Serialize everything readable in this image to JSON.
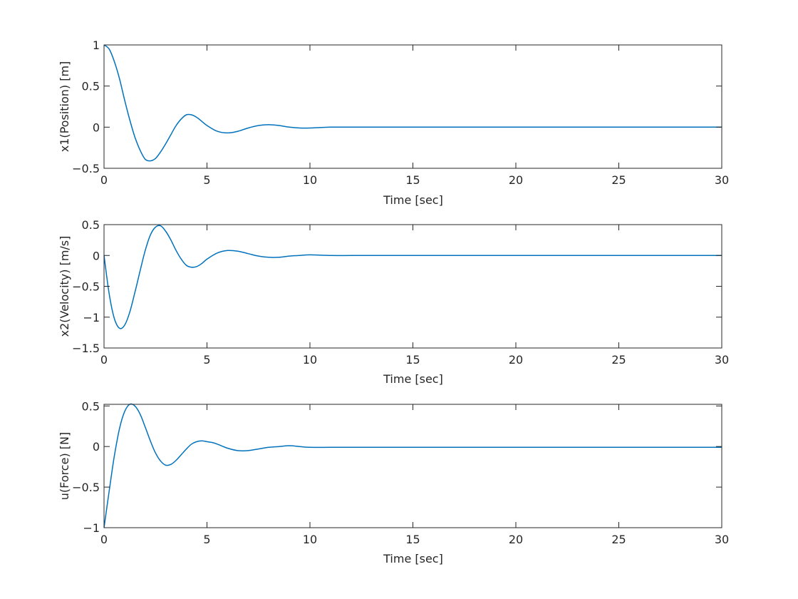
{
  "figure": {
    "background": "#ffffff",
    "line_color": "#0072BD",
    "axes_color": "#262626"
  },
  "chart_data": [
    {
      "type": "line",
      "title": "",
      "xlabel": "Time [sec]",
      "ylabel": "x1(Position) [m]",
      "xlim": [
        0,
        30
      ],
      "ylim": [
        -0.5,
        1
      ],
      "xticks": [
        0,
        5,
        10,
        15,
        20,
        25,
        30
      ],
      "yticks": [
        -0.5,
        0,
        0.5,
        1
      ],
      "ytick_labels": [
        "−0.5",
        "0",
        "0.5",
        "1"
      ],
      "grid": false,
      "series": [
        {
          "name": "x1",
          "x": [
            0,
            0.25,
            0.5,
            0.75,
            1,
            1.25,
            1.5,
            1.75,
            2,
            2.25,
            2.5,
            2.75,
            3,
            3.25,
            3.5,
            3.75,
            4,
            4.25,
            4.5,
            4.75,
            5,
            5.5,
            6,
            6.5,
            7,
            7.5,
            8,
            8.5,
            9,
            9.5,
            10,
            11,
            12,
            13,
            14,
            15,
            20,
            25,
            30
          ],
          "values": [
            1,
            0.95,
            0.8,
            0.59,
            0.33,
            0.09,
            -0.12,
            -0.28,
            -0.39,
            -0.41,
            -0.38,
            -0.3,
            -0.2,
            -0.09,
            0.02,
            0.1,
            0.15,
            0.15,
            0.12,
            0.07,
            0.02,
            -0.05,
            -0.07,
            -0.05,
            -0.01,
            0.02,
            0.03,
            0.02,
            0.0,
            -0.01,
            -0.01,
            0.0,
            0.0,
            0.0,
            0.0,
            0.0,
            0.0,
            0.0,
            0.0
          ]
        }
      ]
    },
    {
      "type": "line",
      "title": "",
      "xlabel": "Time [sec]",
      "ylabel": "x2(Velocity) [m/s]",
      "xlim": [
        0,
        30
      ],
      "ylim": [
        -1.5,
        0.5
      ],
      "xticks": [
        0,
        5,
        10,
        15,
        20,
        25,
        30
      ],
      "yticks": [
        -1.5,
        -1,
        -0.5,
        0,
        0.5
      ],
      "ytick_labels": [
        "−1.5",
        "−1",
        "−0.5",
        "0",
        "0.5"
      ],
      "grid": false,
      "series": [
        {
          "name": "x2",
          "x": [
            0,
            0.25,
            0.5,
            0.75,
            1,
            1.25,
            1.5,
            1.75,
            2,
            2.25,
            2.5,
            2.75,
            3,
            3.25,
            3.5,
            3.75,
            4,
            4.25,
            4.5,
            4.75,
            5,
            5.5,
            6,
            6.5,
            7,
            7.5,
            8,
            8.5,
            9,
            9.5,
            10,
            11,
            12,
            13,
            14,
            15,
            20,
            25,
            30
          ],
          "values": [
            0,
            -0.62,
            -1.02,
            -1.18,
            -1.13,
            -0.92,
            -0.6,
            -0.25,
            0.08,
            0.33,
            0.46,
            0.48,
            0.39,
            0.25,
            0.08,
            -0.06,
            -0.16,
            -0.19,
            -0.18,
            -0.13,
            -0.06,
            0.04,
            0.08,
            0.07,
            0.03,
            -0.01,
            -0.03,
            -0.03,
            -0.01,
            0.0,
            0.01,
            0.0,
            0.0,
            0.0,
            0.0,
            0.0,
            0.0,
            0.0,
            0.0
          ]
        }
      ]
    },
    {
      "type": "line",
      "title": "",
      "xlabel": "Time [sec]",
      "ylabel": "u(Force) [N]",
      "xlim": [
        0,
        30
      ],
      "ylim": [
        -1,
        0.52
      ],
      "xticks": [
        0,
        5,
        10,
        15,
        20,
        25,
        30
      ],
      "yticks": [
        -1,
        -0.5,
        0,
        0.5
      ],
      "ytick_labels": [
        "−1",
        "−0.5",
        "0",
        "0.5"
      ],
      "grid": false,
      "series": [
        {
          "name": "u",
          "x": [
            0,
            0.25,
            0.5,
            0.75,
            1,
            1.25,
            1.5,
            1.75,
            2,
            2.25,
            2.5,
            2.75,
            3,
            3.25,
            3.5,
            3.75,
            4,
            4.25,
            4.5,
            4.75,
            5,
            5.25,
            5.5,
            6,
            6.5,
            7,
            7.5,
            8,
            8.5,
            9,
            9.5,
            10,
            11,
            12,
            13,
            14,
            15,
            20,
            25,
            30
          ],
          "values": [
            -1,
            -0.55,
            -0.12,
            0.22,
            0.43,
            0.52,
            0.5,
            0.4,
            0.24,
            0.07,
            -0.08,
            -0.18,
            -0.23,
            -0.22,
            -0.17,
            -0.1,
            -0.03,
            0.03,
            0.06,
            0.07,
            0.06,
            0.05,
            0.03,
            -0.02,
            -0.05,
            -0.05,
            -0.03,
            -0.01,
            0.0,
            0.01,
            0.0,
            -0.01,
            -0.01,
            -0.01,
            -0.01,
            -0.01,
            -0.01,
            -0.01,
            -0.01,
            -0.01
          ]
        }
      ]
    }
  ]
}
